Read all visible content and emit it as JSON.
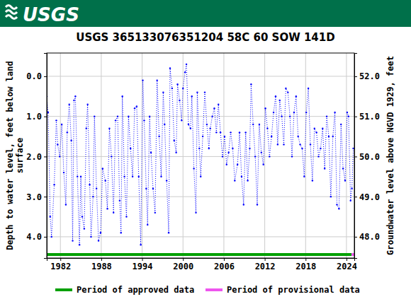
{
  "header": {
    "logo": "USGS"
  },
  "chart_data": {
    "type": "line",
    "title": "USGS 365133076351204 58C 60 SOW 141D",
    "ylabel": [
      "Depth to water level, feet below land",
      "surface"
    ],
    "y2label": "Groundwater level above NGVD 1929, feet",
    "x": [
      1980.0,
      1980.2,
      1980.5,
      1980.7,
      1981.1,
      1981.4,
      1981.6,
      1981.9,
      1982.2,
      1982.5,
      1982.8,
      1983.0,
      1983.3,
      1983.6,
      1983.8,
      1984.0,
      1984.2,
      1984.5,
      1984.8,
      1985.0,
      1985.2,
      1985.5,
      1985.8,
      1986.0,
      1986.3,
      1986.5,
      1986.8,
      1987.0,
      1987.3,
      1987.6,
      1987.9,
      1988.2,
      1988.6,
      1988.9,
      1989.2,
      1989.5,
      1989.8,
      1990.1,
      1990.4,
      1990.7,
      1990.9,
      1991.1,
      1991.4,
      1991.7,
      1992.0,
      1992.3,
      1992.6,
      1992.9,
      1993.2,
      1993.5,
      1993.8,
      1994.1,
      1994.3,
      1994.6,
      1994.8,
      1995.1,
      1995.3,
      1995.6,
      1995.9,
      1996.2,
      1996.5,
      1996.8,
      1997.1,
      1997.3,
      1997.6,
      1997.9,
      1998.1,
      1998.4,
      1998.7,
      1999.0,
      1999.2,
      1999.5,
      1999.8,
      2000.0,
      2000.3,
      2000.5,
      2000.8,
      2001.1,
      2001.3,
      2001.6,
      2001.9,
      2002.1,
      2002.4,
      2002.6,
      2002.9,
      2003.2,
      2003.5,
      2003.8,
      2004.0,
      2004.3,
      2004.6,
      2004.9,
      2005.2,
      2005.5,
      2005.8,
      2006.1,
      2006.4,
      2006.7,
      2007.0,
      2007.3,
      2007.6,
      2008.0,
      2008.3,
      2008.6,
      2008.9,
      2009.2,
      2009.5,
      2009.8,
      2010.0,
      2010.3,
      2010.6,
      2010.9,
      2011.2,
      2011.5,
      2011.8,
      2012.1,
      2012.4,
      2012.7,
      2013.0,
      2013.3,
      2013.6,
      2013.9,
      2014.2,
      2014.5,
      2014.8,
      2015.1,
      2015.4,
      2015.7,
      2016.0,
      2016.3,
      2016.6,
      2016.9,
      2017.2,
      2017.5,
      2017.8,
      2018.1,
      2018.4,
      2018.7,
      2019.0,
      2019.3,
      2019.6,
      2019.9,
      2020.2,
      2020.5,
      2020.8,
      2021.1,
      2021.4,
      2021.7,
      2022.0,
      2022.3,
      2022.6,
      2022.9,
      2023.2,
      2023.5,
      2023.8,
      2024.1,
      2024.3,
      2024.6,
      2024.8,
      2025.0
    ],
    "series": [
      {
        "color": "#0000ff",
        "marker": "point",
        "line_style": "dotted",
        "values": [
          0.5,
          0.9,
          3.5,
          4.0,
          2.7,
          1.1,
          1.7,
          2.0,
          1.2,
          2.4,
          3.2,
          1.4,
          0.7,
          1.6,
          4.1,
          0.6,
          0.5,
          2.5,
          4.2,
          2.5,
          3.5,
          3.8,
          1.3,
          0.7,
          2.7,
          4.0,
          3.0,
          1.0,
          2.8,
          4.1,
          3.9,
          2.3,
          2.6,
          3.3,
          1.3,
          2.0,
          3.4,
          1.1,
          1.0,
          3.1,
          3.9,
          0.5,
          2.5,
          3.5,
          1.0,
          1.8,
          2.5,
          0.8,
          0.75,
          2.5,
          4.2,
          0.1,
          1.1,
          2.8,
          3.7,
          1.0,
          1.9,
          2.8,
          3.4,
          0.1,
          1.5,
          2.5,
          0.4,
          1.2,
          2.6,
          3.9,
          -0.2,
          0.3,
          1.6,
          1.9,
          0.2,
          0.6,
          1.1,
          0.3,
          -0.1,
          -0.3,
          1.2,
          1.3,
          0.5,
          2.3,
          3.4,
          0.4,
          1.8,
          2.5,
          1.5,
          0.4,
          1.2,
          1.8,
          1.3,
          1.0,
          0.8,
          1.4,
          0.7,
          1.4,
          2.0,
          1.5,
          2.2,
          1.9,
          1.4,
          1.8,
          2.6,
          2.2,
          1.4,
          2.5,
          3.2,
          1.4,
          2.6,
          1.8,
          0.2,
          1.2,
          2.0,
          3.2,
          1.2,
          1.9,
          2.2,
          0.8,
          1.3,
          2.0,
          1.5,
          0.9,
          0.5,
          1.7,
          0.6,
          1.0,
          1.7,
          0.3,
          0.4,
          1.0,
          2.0,
          0.9,
          0.5,
          1.5,
          1.7,
          1.8,
          2.5,
          0.9,
          0.3,
          1.7,
          2.6,
          1.3,
          1.4,
          2.0,
          1.8,
          1.3,
          2.3,
          1.0,
          1.5,
          3.0,
          1.5,
          0.9,
          3.2,
          3.3,
          1.2,
          2.3,
          2.6,
          0.9,
          1.0,
          3.1,
          2.8,
          1.8
        ]
      }
    ],
    "periods": [
      {
        "name": "Period of approved data",
        "color": "#00a000",
        "x": [
          1980.0,
          2024.75
        ]
      },
      {
        "name": "Period of provisional data",
        "color": "#ee55ee",
        "x": [
          2024.75,
          2025.15
        ]
      }
    ],
    "xlim": [
      1980.0,
      2025.15
    ],
    "xticks": [
      1982,
      1988,
      1994,
      2000,
      2006,
      2012,
      2018,
      2024
    ],
    "ylim": [
      -0.58,
      4.53
    ],
    "yticks": [
      {
        "value": 0,
        "label": "0.0"
      },
      {
        "value": 1,
        "label": "1.0"
      },
      {
        "value": 2,
        "label": "2.0"
      },
      {
        "value": 3,
        "label": "3.0"
      },
      {
        "value": 4,
        "label": "4.0"
      }
    ],
    "y2lim": [
      52.58,
      47.47
    ],
    "y2ticks": [
      {
        "value": 48,
        "label": "48.0"
      },
      {
        "value": 49,
        "label": "49.0"
      },
      {
        "value": 50,
        "label": "50.0"
      },
      {
        "value": 51,
        "label": "51.0"
      },
      {
        "value": 52,
        "label": "52.0"
      }
    ],
    "grid": true
  }
}
